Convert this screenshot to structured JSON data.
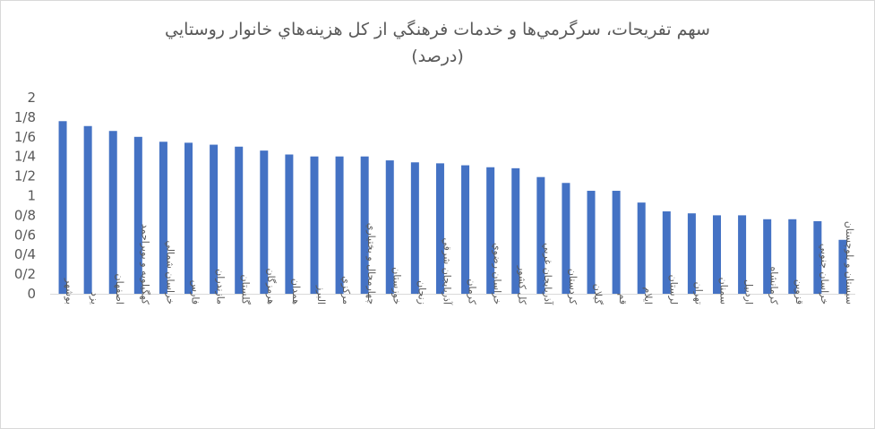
{
  "chart_data": {
    "type": "bar",
    "title_line1": "سهم تفريحات، سرگرمي‌ها و خدمات فرهنگي از کل هزينه‌هاي خانوار روستايي",
    "title_line2": "(درصد)",
    "xlabel": "",
    "ylabel": "",
    "ylim": [
      0,
      2
    ],
    "yticks": [
      "0",
      "0/2",
      "0/4",
      "0/6",
      "0/8",
      "1",
      "1/2",
      "1/4",
      "1/6",
      "1/8",
      "2"
    ],
    "grid": false,
    "bar_color": "#4472c4",
    "categories": [
      "بوشهر",
      "يزد",
      "اصفهان",
      "کهگيلويه و بويراحمد",
      "خراسان شمالي",
      "فارس",
      "مازندران",
      "گلستان",
      "هرمزگان",
      "همدان",
      "البرز",
      "مرکزي",
      "چهارمحال و بختياري",
      "خوزستان",
      "زنجان",
      "آذربايجان شرقي",
      "کرمان",
      "خراسان رضوي",
      "کل کشور",
      "آذربايجان غربي",
      "کردستان",
      "گيلان",
      "قم",
      "ايلام",
      "لرستان",
      "تهران",
      "سمنان",
      "اردبيل",
      "کرمانشاه",
      "قزوين",
      "خراسان جنوبي",
      "سيستان و بلوچستان"
    ],
    "values": [
      1.76,
      1.71,
      1.66,
      1.6,
      1.55,
      1.54,
      1.52,
      1.5,
      1.46,
      1.42,
      1.4,
      1.4,
      1.4,
      1.36,
      1.34,
      1.33,
      1.31,
      1.29,
      1.28,
      1.19,
      1.13,
      1.05,
      1.05,
      0.93,
      0.84,
      0.82,
      0.8,
      0.8,
      0.76,
      0.76,
      0.74,
      0.55
    ]
  }
}
